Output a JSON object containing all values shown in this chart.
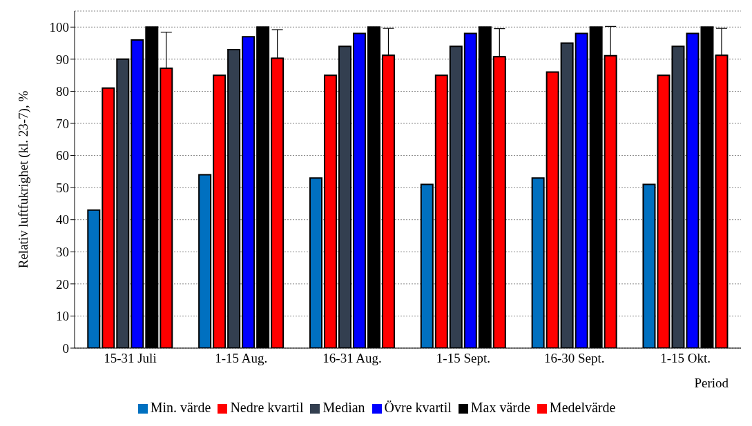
{
  "chart_data": {
    "type": "bar",
    "xlabel": "Period",
    "ylabel": "Relativ luftfukrighet (kl. 23-7), %",
    "categories": [
      "15-31 Juli",
      "1-15 Aug.",
      "16-31 Aug.",
      "1-15 Sept.",
      "16-30 Sept.",
      "1-15 Okt."
    ],
    "series": [
      {
        "name": "Min. värde",
        "color": "#0070c0",
        "values": [
          43,
          54,
          53,
          51,
          53,
          51
        ]
      },
      {
        "name": "Nedre kvartil",
        "color": "#ff0000",
        "values": [
          81,
          85,
          85,
          85,
          86,
          85
        ]
      },
      {
        "name": "Median",
        "color": "#333f50",
        "values": [
          90,
          93,
          94,
          94,
          95,
          94
        ]
      },
      {
        "name": "Övre kvartil",
        "color": "#0000ff",
        "values": [
          96,
          97,
          98,
          98,
          98,
          98
        ]
      },
      {
        "name": "Max värde",
        "color": "#000000",
        "values": [
          100,
          100,
          100,
          100,
          100,
          100
        ]
      },
      {
        "name": "Medelvärde",
        "color": "#ff0000",
        "values": [
          87.2,
          90.3,
          91.2,
          90.8,
          91.1,
          91.2
        ],
        "errors": [
          [
            87.2,
            98.4
          ],
          [
            90.3,
            99.2
          ],
          [
            91.2,
            99.6
          ],
          [
            90.8,
            99.5
          ],
          [
            91.1,
            100.2
          ],
          [
            91.2,
            99.6
          ]
        ]
      }
    ],
    "ylim": [
      0,
      105
    ],
    "yticks": [
      0,
      10,
      20,
      30,
      40,
      50,
      60,
      70,
      80,
      90,
      100
    ],
    "grid": "y",
    "legend": "bottom"
  }
}
